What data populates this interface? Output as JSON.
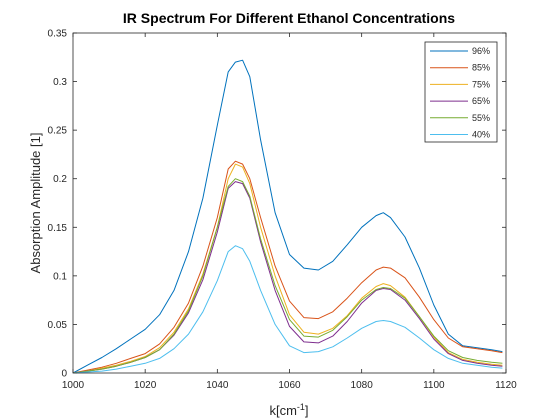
{
  "chart_data": {
    "type": "line",
    "title": "IR Spectrum For Different Ethanol Concentrations",
    "xlabel": "k[cm",
    "xlabel_sup": "-1",
    "xlabel_close": "]",
    "ylabel": "Absorption Amplitude [1]",
    "xlim": [
      1000,
      1120
    ],
    "ylim": [
      0,
      0.35
    ],
    "xticks": [
      1000,
      1020,
      1040,
      1060,
      1080,
      1100,
      1120
    ],
    "yticks": [
      0,
      0.05,
      0.1,
      0.15,
      0.2,
      0.25,
      0.3,
      0.35
    ],
    "ytick_labels": [
      "0",
      "0.05",
      "0.1",
      "0.15",
      "0.2",
      "0.25",
      "0.3",
      "0.35"
    ],
    "grid": false,
    "legend_position": "top-right",
    "x": [
      1000,
      1004,
      1008,
      1012,
      1016,
      1020,
      1024,
      1028,
      1032,
      1036,
      1040,
      1043,
      1045,
      1047,
      1049,
      1052,
      1056,
      1060,
      1064,
      1068,
      1072,
      1076,
      1080,
      1084,
      1086,
      1088,
      1092,
      1096,
      1100,
      1104,
      1108,
      1112,
      1116,
      1119
    ],
    "series": [
      {
        "name": "96%",
        "color": "#0072BD",
        "values": [
          0.0,
          0.008,
          0.016,
          0.025,
          0.035,
          0.045,
          0.06,
          0.085,
          0.125,
          0.18,
          0.255,
          0.31,
          0.32,
          0.322,
          0.305,
          0.24,
          0.165,
          0.122,
          0.108,
          0.106,
          0.115,
          0.132,
          0.15,
          0.162,
          0.165,
          0.16,
          0.14,
          0.108,
          0.07,
          0.04,
          0.028,
          0.026,
          0.024,
          0.022
        ]
      },
      {
        "name": "85%",
        "color": "#D95319",
        "values": [
          0.0,
          0.003,
          0.006,
          0.01,
          0.015,
          0.02,
          0.03,
          0.047,
          0.072,
          0.11,
          0.16,
          0.21,
          0.218,
          0.215,
          0.2,
          0.16,
          0.11,
          0.074,
          0.057,
          0.056,
          0.063,
          0.077,
          0.093,
          0.106,
          0.109,
          0.108,
          0.098,
          0.078,
          0.055,
          0.036,
          0.027,
          0.025,
          0.023,
          0.021
        ]
      },
      {
        "name": "75%",
        "color": "#EDB120",
        "values": [
          0.0,
          0.002,
          0.005,
          0.008,
          0.012,
          0.017,
          0.026,
          0.042,
          0.066,
          0.102,
          0.15,
          0.2,
          0.215,
          0.212,
          0.195,
          0.15,
          0.1,
          0.06,
          0.042,
          0.04,
          0.046,
          0.059,
          0.077,
          0.089,
          0.092,
          0.09,
          0.078,
          0.058,
          0.037,
          0.021,
          0.014,
          0.011,
          0.009,
          0.008
        ]
      },
      {
        "name": "65%",
        "color": "#7E2F8E",
        "values": [
          0.0,
          0.002,
          0.004,
          0.007,
          0.011,
          0.016,
          0.024,
          0.039,
          0.062,
          0.096,
          0.145,
          0.19,
          0.197,
          0.195,
          0.18,
          0.135,
          0.085,
          0.048,
          0.032,
          0.031,
          0.038,
          0.053,
          0.072,
          0.085,
          0.087,
          0.086,
          0.075,
          0.056,
          0.035,
          0.02,
          0.013,
          0.01,
          0.008,
          0.007
        ]
      },
      {
        "name": "55%",
        "color": "#77AC30",
        "values": [
          0.0,
          0.002,
          0.004,
          0.007,
          0.011,
          0.016,
          0.024,
          0.04,
          0.064,
          0.1,
          0.15,
          0.192,
          0.2,
          0.197,
          0.182,
          0.138,
          0.09,
          0.055,
          0.038,
          0.037,
          0.044,
          0.058,
          0.075,
          0.086,
          0.088,
          0.087,
          0.077,
          0.058,
          0.038,
          0.023,
          0.016,
          0.013,
          0.011,
          0.01
        ]
      },
      {
        "name": "40%",
        "color": "#4DBEEE",
        "values": [
          0.0,
          0.001,
          0.002,
          0.004,
          0.007,
          0.01,
          0.015,
          0.025,
          0.04,
          0.063,
          0.095,
          0.125,
          0.131,
          0.128,
          0.115,
          0.085,
          0.05,
          0.028,
          0.021,
          0.022,
          0.027,
          0.036,
          0.046,
          0.053,
          0.054,
          0.053,
          0.047,
          0.036,
          0.024,
          0.015,
          0.01,
          0.008,
          0.006,
          0.005
        ]
      }
    ]
  }
}
